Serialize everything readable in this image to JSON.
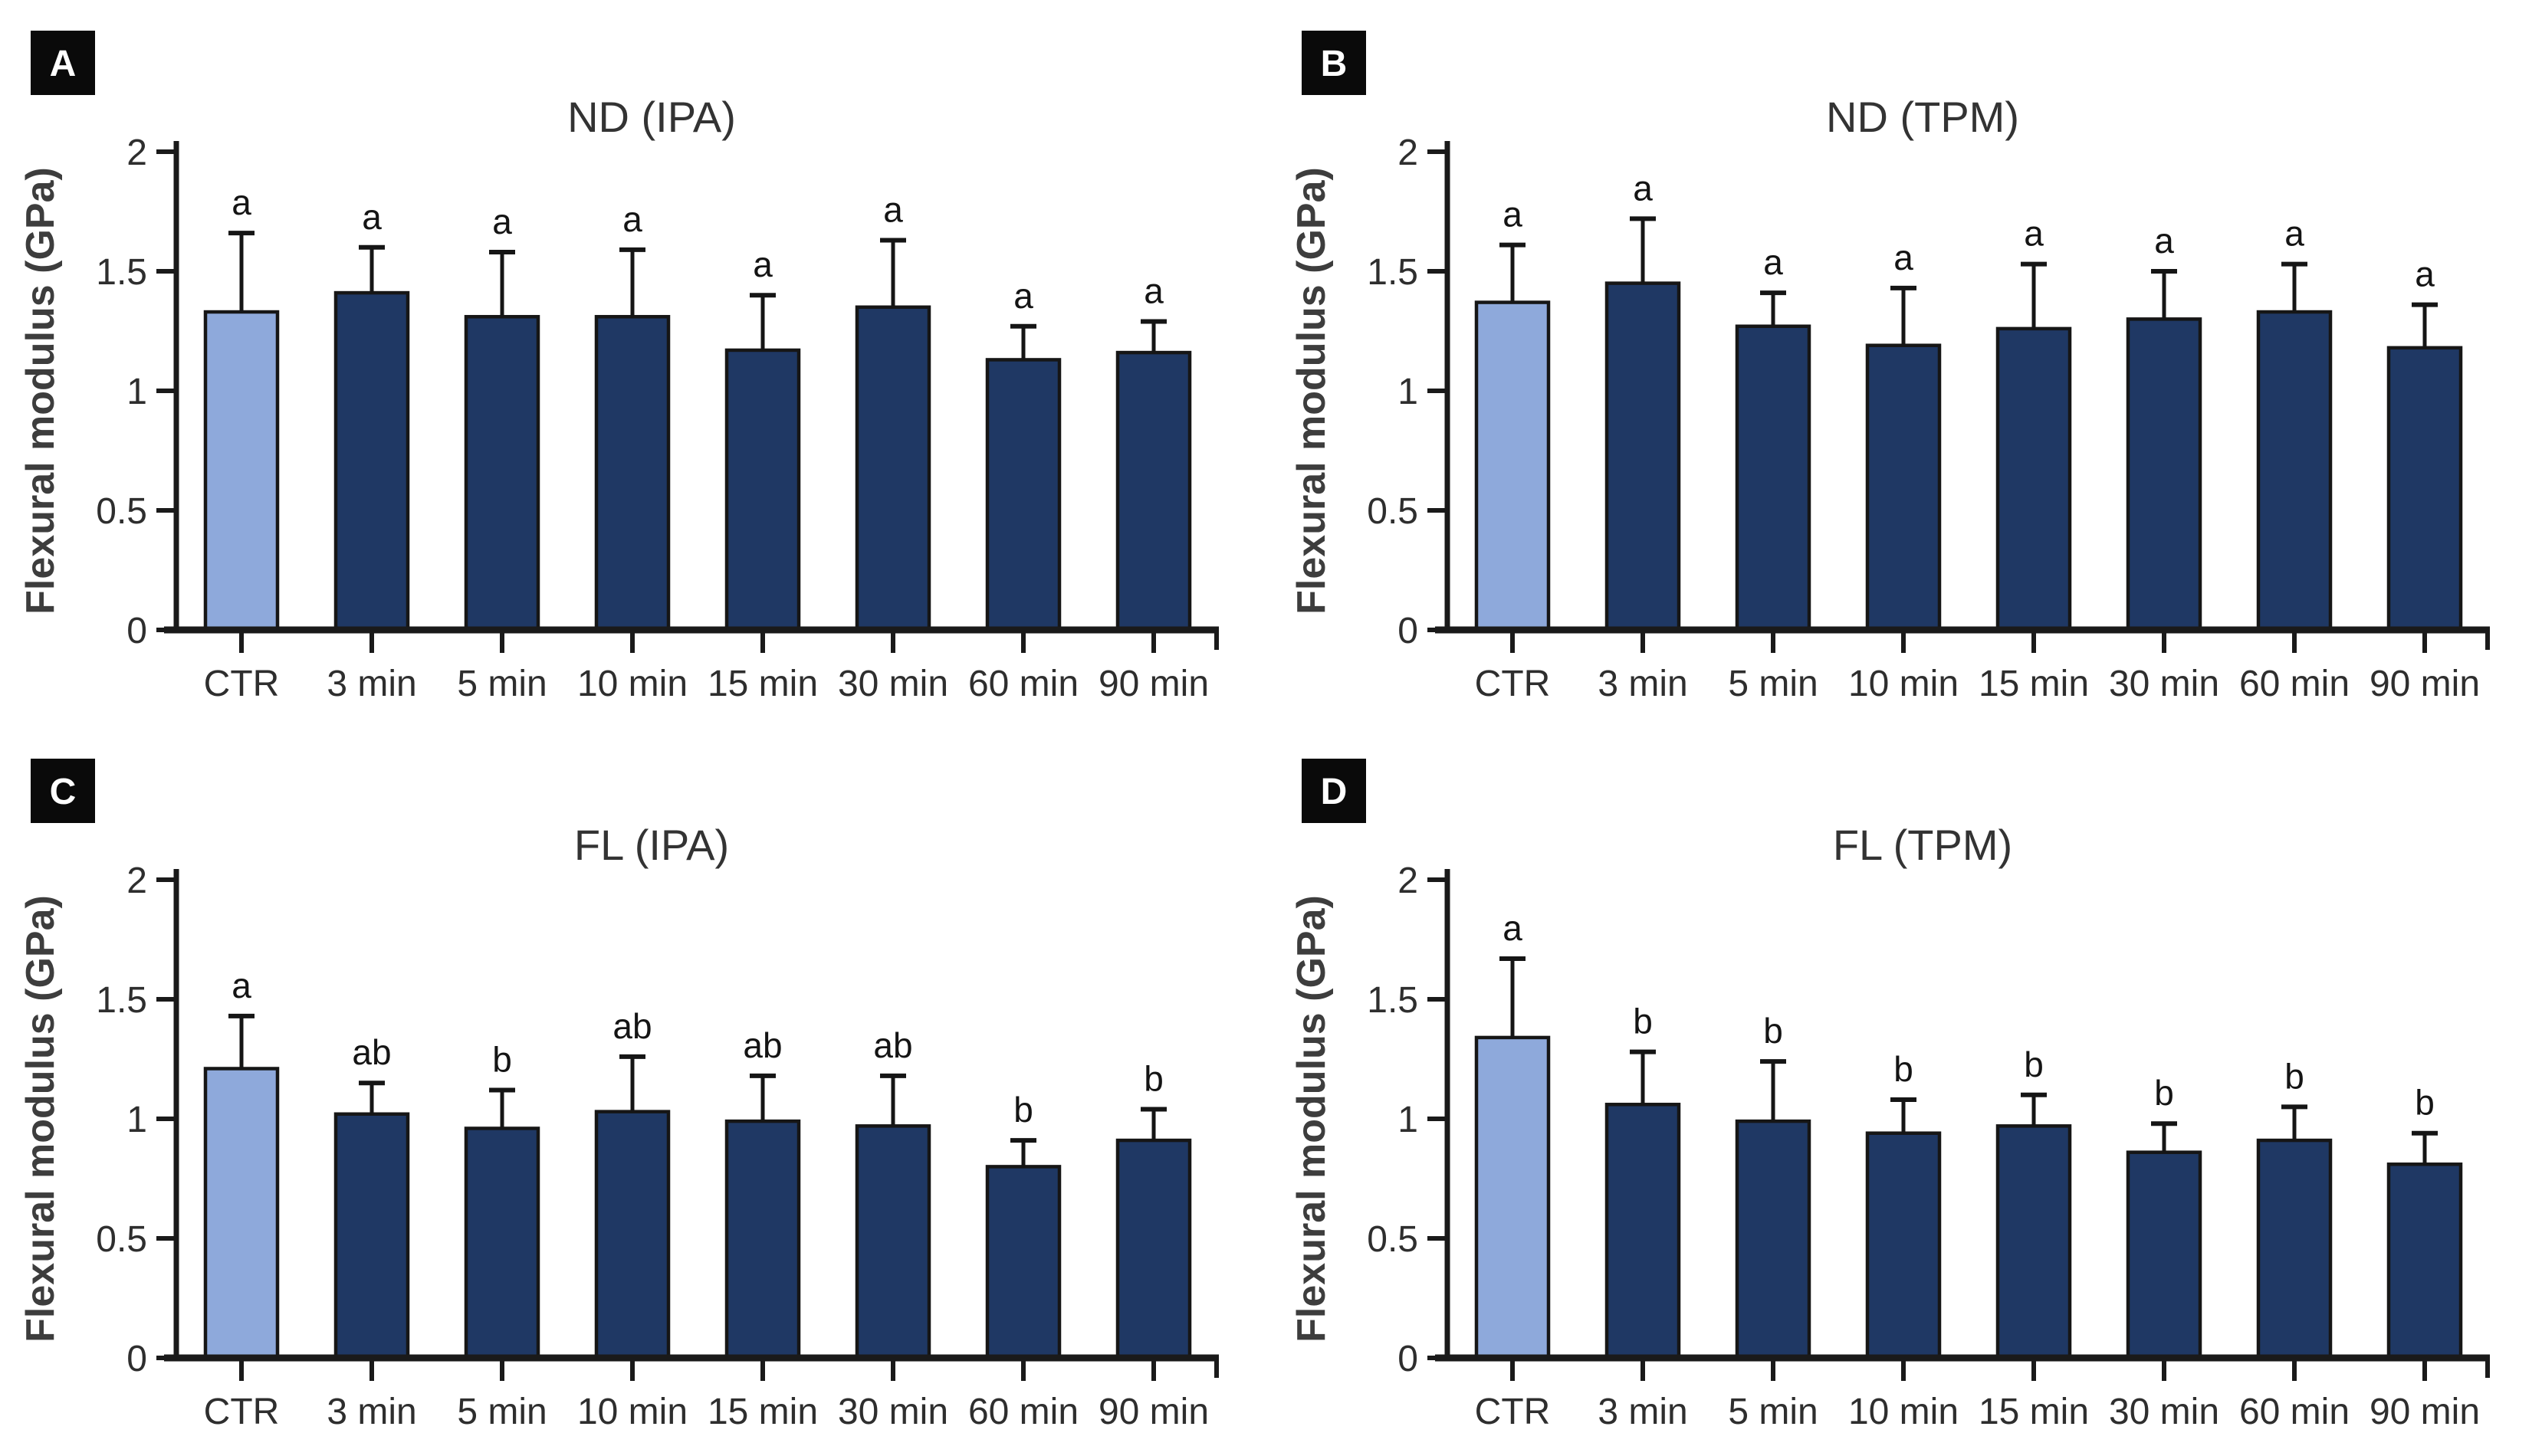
{
  "figure": {
    "background": "#ffffff",
    "ylabel": "Flexural modulus (GPa)",
    "categories": [
      "CTR",
      "3 min",
      "5 min",
      "10 min",
      "15 min",
      "30 min",
      "60 min",
      "90 min"
    ],
    "ytick_values": [
      0,
      0.5,
      1,
      1.5,
      2
    ],
    "ytick_labels": [
      "0",
      "0.5",
      "1",
      "1.5",
      "2"
    ],
    "colors": {
      "ctr_bar": "#8EA9DB",
      "treatment_bar": "#1F3864",
      "bar_border": "#161616",
      "axis": "#1a1a1a",
      "error_bar": "#151515",
      "tick_text": "#2e2e2e",
      "title_text": "#333333",
      "letter_text": "#141414",
      "panel_label_bg": "#0a0a0a",
      "panel_label_text": "#ffffff"
    }
  },
  "chart_data": [
    {
      "type": "bar",
      "panel_label": "A",
      "title": "ND (IPA)",
      "xlabel": "",
      "ylabel": "Flexural modulus (GPa)",
      "ylim": [
        0,
        2
      ],
      "grid": false,
      "legend": false,
      "categories": [
        "CTR",
        "3 min",
        "5 min",
        "10 min",
        "15 min",
        "30 min",
        "60 min",
        "90 min"
      ],
      "values": [
        1.33,
        1.41,
        1.31,
        1.31,
        1.17,
        1.35,
        1.13,
        1.16
      ],
      "errors_upper": [
        0.33,
        0.19,
        0.27,
        0.28,
        0.23,
        0.28,
        0.14,
        0.13
      ],
      "sig_letters": [
        "a",
        "a",
        "a",
        "a",
        "a",
        "a",
        "a",
        "a"
      ]
    },
    {
      "type": "bar",
      "panel_label": "B",
      "title": "ND (TPM)",
      "xlabel": "",
      "ylabel": "Flexural modulus (GPa)",
      "ylim": [
        0,
        2
      ],
      "grid": false,
      "legend": false,
      "categories": [
        "CTR",
        "3 min",
        "5 min",
        "10 min",
        "15 min",
        "30 min",
        "60 min",
        "90 min"
      ],
      "values": [
        1.37,
        1.45,
        1.27,
        1.19,
        1.26,
        1.3,
        1.33,
        1.18
      ],
      "errors_upper": [
        0.24,
        0.27,
        0.14,
        0.24,
        0.27,
        0.2,
        0.2,
        0.18
      ],
      "sig_letters": [
        "a",
        "a",
        "a",
        "a",
        "a",
        "a",
        "a",
        "a"
      ]
    },
    {
      "type": "bar",
      "panel_label": "C",
      "title": "FL (IPA)",
      "xlabel": "",
      "ylabel": "Flexural modulus (GPa)",
      "ylim": [
        0,
        2
      ],
      "grid": false,
      "legend": false,
      "categories": [
        "CTR",
        "3 min",
        "5 min",
        "10 min",
        "15 min",
        "30 min",
        "60 min",
        "90 min"
      ],
      "values": [
        1.21,
        1.02,
        0.96,
        1.03,
        0.99,
        0.97,
        0.8,
        0.91
      ],
      "errors_upper": [
        0.22,
        0.13,
        0.16,
        0.23,
        0.19,
        0.21,
        0.11,
        0.13
      ],
      "sig_letters": [
        "a",
        "ab",
        "b",
        "ab",
        "ab",
        "ab",
        "b",
        "b"
      ]
    },
    {
      "type": "bar",
      "panel_label": "D",
      "title": "FL (TPM)",
      "xlabel": "",
      "ylabel": "Flexural modulus (GPa)",
      "ylim": [
        0,
        2
      ],
      "grid": false,
      "legend": false,
      "categories": [
        "CTR",
        "3 min",
        "5 min",
        "10 min",
        "15 min",
        "30 min",
        "60 min",
        "90 min"
      ],
      "values": [
        1.34,
        1.06,
        0.99,
        0.94,
        0.97,
        0.86,
        0.91,
        0.81
      ],
      "errors_upper": [
        0.33,
        0.22,
        0.25,
        0.14,
        0.13,
        0.12,
        0.14,
        0.13
      ],
      "sig_letters": [
        "a",
        "b",
        "b",
        "b",
        "b",
        "b",
        "b",
        "b"
      ]
    }
  ]
}
